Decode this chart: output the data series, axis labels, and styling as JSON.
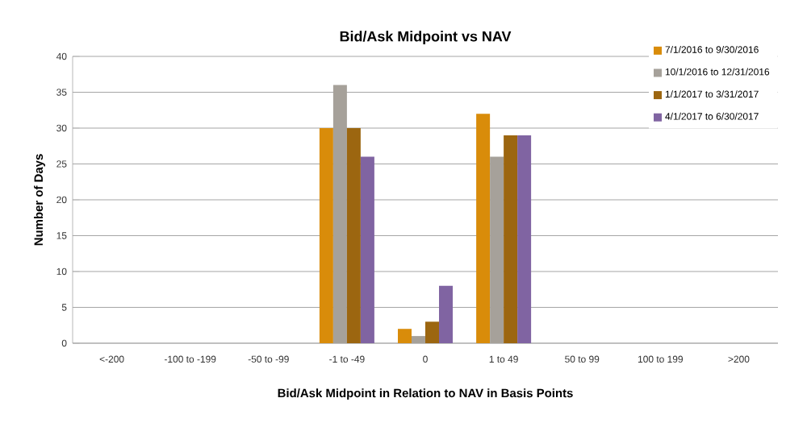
{
  "chart_data": {
    "type": "bar",
    "title": "Bid/Ask Midpoint vs NAV",
    "xlabel": "Bid/Ask Midpoint in Relation to NAV in Basis Points",
    "ylabel": "Number of Days",
    "categories": [
      "<-200",
      "-100 to -199",
      "-50 to -99",
      "-1 to -49",
      "0",
      "1 to 49",
      "50 to 99",
      "100 to 199",
      ">200"
    ],
    "series": [
      {
        "name": "7/1/2016 to 9/30/2016",
        "color": "#d98c0a",
        "values": [
          0,
          0,
          0,
          30,
          2,
          32,
          0,
          0,
          0
        ]
      },
      {
        "name": "10/1/2016 to 12/31/2016",
        "color": "#a6a19a",
        "values": [
          0,
          0,
          0,
          36,
          1,
          26,
          0,
          0,
          0
        ]
      },
      {
        "name": "1/1/2017 to 3/31/2017",
        "color": "#9c6610",
        "values": [
          0,
          0,
          0,
          30,
          3,
          29,
          0,
          0,
          0
        ]
      },
      {
        "name": "4/1/2017 to 6/30/2017",
        "color": "#8064a2",
        "values": [
          0,
          0,
          0,
          26,
          8,
          29,
          0,
          0,
          0
        ]
      }
    ],
    "ylim": [
      0,
      40
    ],
    "yticks": [
      0,
      5,
      10,
      15,
      20,
      25,
      30,
      35,
      40
    ],
    "grid": "y",
    "legend": "top right"
  }
}
